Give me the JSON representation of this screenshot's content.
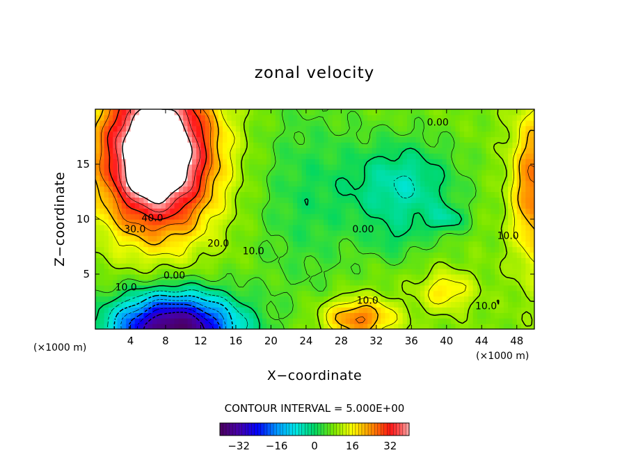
{
  "chart_data": {
    "type": "heatmap",
    "title": "zonal velocity",
    "xlabel": "X−coordinate",
    "ylabel": "Z−coordinate",
    "x_unit_left": "(×1000 m)",
    "x_unit_right": "(×1000 m)",
    "xlim": [
      0,
      50
    ],
    "ylim": [
      0,
      20
    ],
    "x_ticks": [
      4,
      8,
      12,
      16,
      20,
      24,
      28,
      32,
      36,
      40,
      44,
      48
    ],
    "x_tick_labels": [
      "4",
      "8",
      "12",
      "16",
      "20",
      "24",
      "28",
      "32",
      "36",
      "40",
      "44",
      "48"
    ],
    "y_ticks": [
      5,
      10,
      15
    ],
    "y_tick_labels": [
      "5",
      "10",
      "15"
    ],
    "contour_interval_text": "CONTOUR INTERVAL = 5.000E+00",
    "contour_labels": [
      {
        "text": "40.0",
        "x": 6.5,
        "y": 9.8
      },
      {
        "text": "30.0",
        "x": 4.5,
        "y": 8.8
      },
      {
        "text": "20.0",
        "x": 14.0,
        "y": 7.5
      },
      {
        "text": "10.0",
        "x": 18.0,
        "y": 6.8
      },
      {
        "text": "0.00",
        "x": 9.0,
        "y": 4.6
      },
      {
        "text": "10.0",
        "x": 3.5,
        "y": 3.5
      },
      {
        "text": "0.00",
        "x": 30.5,
        "y": 8.8
      },
      {
        "text": "10.0",
        "x": 31.0,
        "y": 2.3
      },
      {
        "text": "10.0",
        "x": 44.5,
        "y": 1.8
      },
      {
        "text": "10.0",
        "x": 47.0,
        "y": 8.2
      },
      {
        "text": "0.00",
        "x": 39.0,
        "y": 18.5
      }
    ],
    "colorbar": {
      "range": [
        -40,
        40
      ],
      "ticks": [
        -32,
        -16,
        0,
        16,
        32
      ],
      "tick_labels": [
        "−32",
        "−16",
        "0",
        "16",
        "32"
      ]
    },
    "features": [
      {
        "kind": "positive_max",
        "x": 7,
        "y": 16,
        "value_above": 40
      },
      {
        "kind": "negative_min",
        "x": 8,
        "y": 0.5,
        "value_below": -32
      },
      {
        "kind": "negative_cell",
        "x": 36,
        "y": 13,
        "value": -5
      },
      {
        "kind": "positive_cell",
        "x": 31,
        "y": 1,
        "value": 25
      },
      {
        "kind": "positive_cell",
        "x": 40,
        "y": 3.5,
        "value": 15
      },
      {
        "kind": "positive_edge",
        "x": 50,
        "y": 13,
        "value": 25
      }
    ]
  }
}
